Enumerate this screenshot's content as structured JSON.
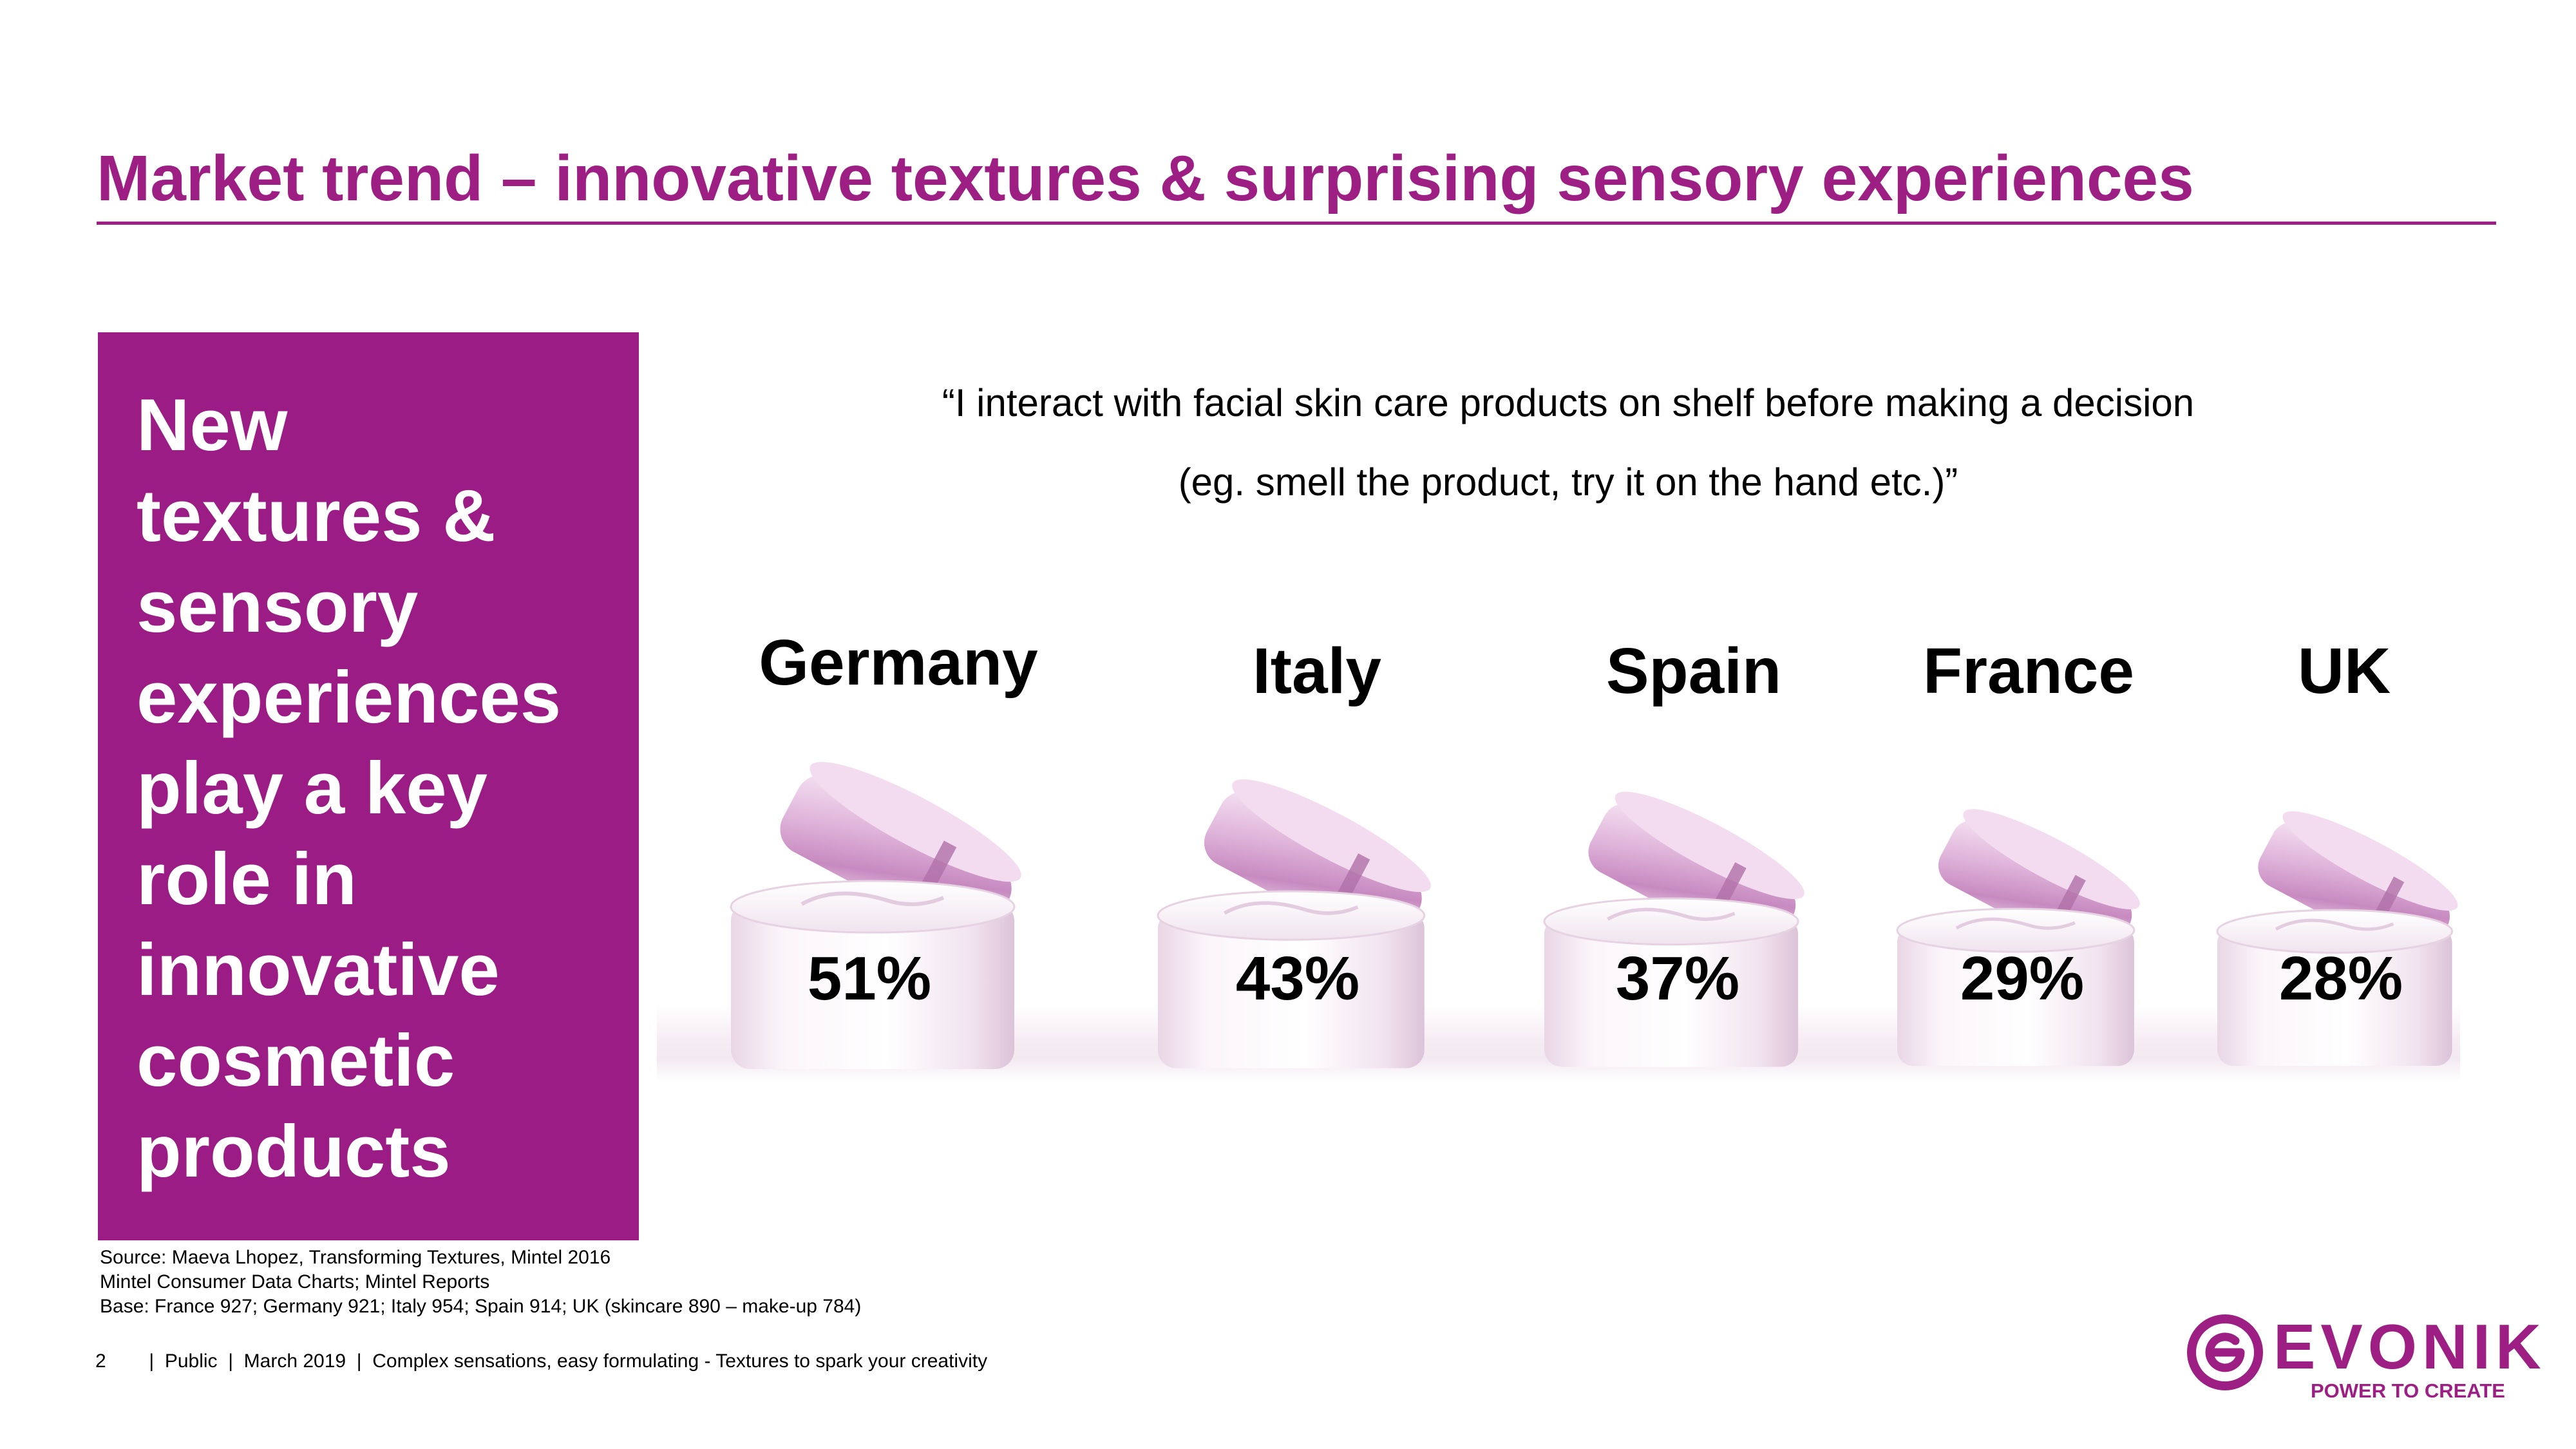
{
  "slide": {
    "title": "Market trend – innovative textures & surprising sensory experiences"
  },
  "sidebar": {
    "lines": [
      "New",
      "textures &",
      "sensory",
      "experiences",
      "play a key",
      "role in",
      "innovative",
      "cosmetic",
      "products"
    ]
  },
  "quote": {
    "line1": "“I interact with facial skin care products on shelf before making a decision",
    "line2": "(eg. smell the product, try it on the hand etc.)”"
  },
  "chart_data": {
    "type": "bar",
    "categories": [
      "Germany",
      "Italy",
      "Spain",
      "France",
      "UK"
    ],
    "values": [
      51,
      43,
      37,
      29,
      28
    ],
    "value_labels": [
      "51%",
      "43%",
      "37%",
      "29%",
      "28%"
    ]
  },
  "footer": {
    "source_lines": [
      "Source: Maeva Lhopez, Transforming Textures, Mintel 2016",
      "Mintel Consumer Data Charts; Mintel Reports",
      "Base: France 927; Germany 921; Italy 954; Spain 914; UK (skincare 890 – make-up 784)"
    ],
    "bar": "2        |  Public  |  March 2019  |  Complex sensations, easy formulating - Textures to spark your creativity"
  },
  "logo": {
    "word": "EVONIK",
    "tagline": "POWER TO CREATE",
    "color": "#9d1f84"
  }
}
